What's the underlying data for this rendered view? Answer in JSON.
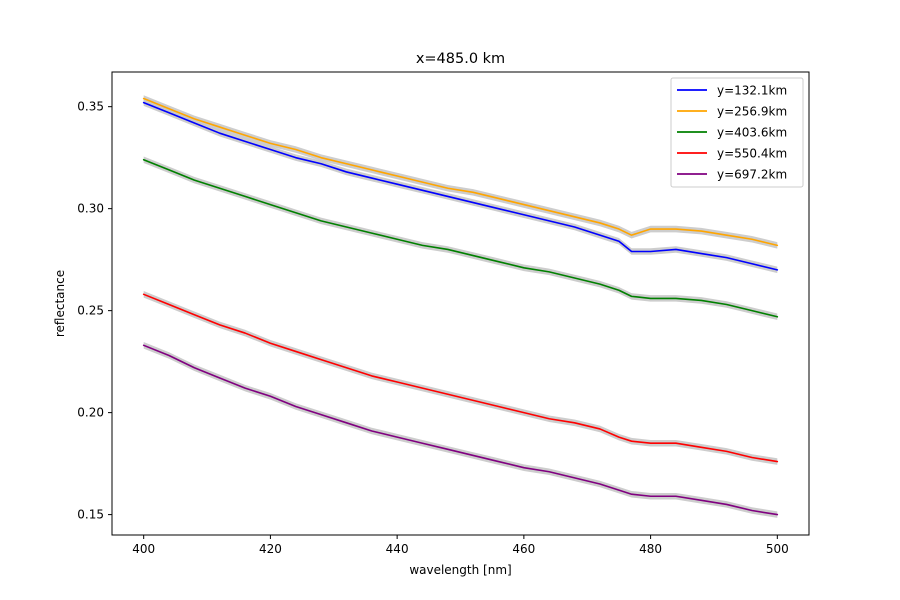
{
  "chart_data": {
    "type": "line",
    "title": "x=485.0 km",
    "xlabel": "wavelength [nm]",
    "ylabel": "reflectance",
    "xlim": [
      395,
      505
    ],
    "ylim": [
      0.14,
      0.367
    ],
    "xticks": [
      400,
      420,
      440,
      460,
      480,
      500
    ],
    "xtick_labels": [
      "400",
      "420",
      "440",
      "460",
      "480",
      "500"
    ],
    "yticks": [
      0.15,
      0.2,
      0.25,
      0.3,
      0.35
    ],
    "ytick_labels": [
      "0.15",
      "0.20",
      "0.25",
      "0.30",
      "0.35"
    ],
    "grid": false,
    "legend_position": "top-right",
    "uncertainty_band_color": "#c8c8c8",
    "x": [
      400,
      404,
      408,
      412,
      416,
      420,
      424,
      428,
      432,
      436,
      440,
      444,
      448,
      452,
      456,
      460,
      464,
      468,
      472,
      475,
      477,
      480,
      484,
      488,
      492,
      496,
      500
    ],
    "series": [
      {
        "name": "y=132.1km",
        "color": "#0000ff",
        "values": [
          0.352,
          0.347,
          0.342,
          0.337,
          0.333,
          0.329,
          0.325,
          0.322,
          0.318,
          0.315,
          0.312,
          0.309,
          0.306,
          0.303,
          0.3,
          0.297,
          0.294,
          0.291,
          0.287,
          0.284,
          0.279,
          0.279,
          0.28,
          0.278,
          0.276,
          0.273,
          0.27
        ]
      },
      {
        "name": "y=256.9km",
        "color": "#ffa500",
        "values": [
          0.354,
          0.349,
          0.344,
          0.34,
          0.336,
          0.332,
          0.329,
          0.325,
          0.322,
          0.319,
          0.316,
          0.313,
          0.31,
          0.308,
          0.305,
          0.302,
          0.299,
          0.296,
          0.293,
          0.29,
          0.287,
          0.29,
          0.29,
          0.289,
          0.287,
          0.285,
          0.282
        ]
      },
      {
        "name": "y=403.6km",
        "color": "#008000",
        "values": [
          0.324,
          0.319,
          0.314,
          0.31,
          0.306,
          0.302,
          0.298,
          0.294,
          0.291,
          0.288,
          0.285,
          0.282,
          0.28,
          0.277,
          0.274,
          0.271,
          0.269,
          0.266,
          0.263,
          0.26,
          0.257,
          0.256,
          0.256,
          0.255,
          0.253,
          0.25,
          0.247
        ]
      },
      {
        "name": "y=550.4km",
        "color": "#ff0000",
        "values": [
          0.258,
          0.253,
          0.248,
          0.243,
          0.239,
          0.234,
          0.23,
          0.226,
          0.222,
          0.218,
          0.215,
          0.212,
          0.209,
          0.206,
          0.203,
          0.2,
          0.197,
          0.195,
          0.192,
          0.188,
          0.186,
          0.185,
          0.185,
          0.183,
          0.181,
          0.178,
          0.176
        ]
      },
      {
        "name": "y=697.2km",
        "color": "#800080",
        "values": [
          0.233,
          0.228,
          0.222,
          0.217,
          0.212,
          0.208,
          0.203,
          0.199,
          0.195,
          0.191,
          0.188,
          0.185,
          0.182,
          0.179,
          0.176,
          0.173,
          0.171,
          0.168,
          0.165,
          0.162,
          0.16,
          0.159,
          0.159,
          0.157,
          0.155,
          0.152,
          0.15
        ]
      }
    ]
  }
}
